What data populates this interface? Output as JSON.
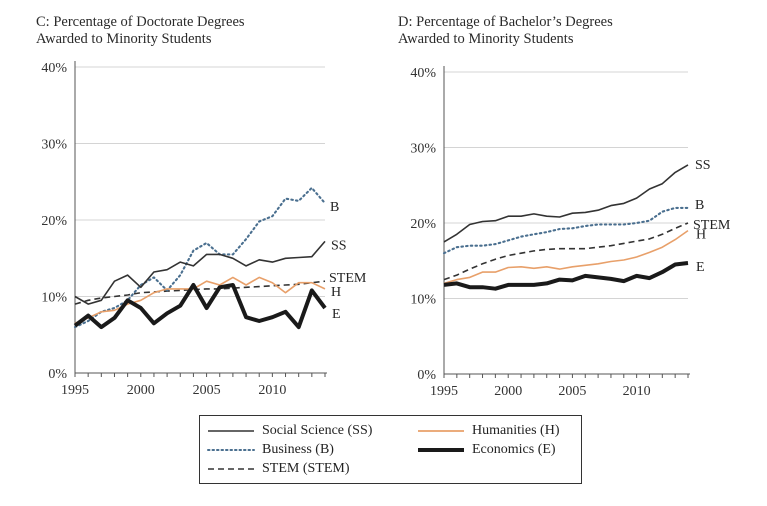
{
  "chart_data": [
    {
      "type": "line",
      "panel": "C",
      "title_lines": [
        "C: Percentage of Doctorate Degrees",
        "Awarded to Minority Students"
      ],
      "xlabel": "",
      "ylabel": "",
      "xlim": [
        1995,
        2014
      ],
      "ylim": [
        0,
        40
      ],
      "xticks": [
        1995,
        2000,
        2005,
        2010
      ],
      "yticks": [
        0,
        10,
        20,
        30,
        40
      ],
      "ytick_labels": [
        "0%",
        "10%",
        "20%",
        "30%",
        "40%"
      ],
      "grid": true,
      "x": [
        1995,
        1996,
        1997,
        1998,
        1999,
        2000,
        2001,
        2002,
        2003,
        2004,
        2005,
        2006,
        2007,
        2008,
        2009,
        2010,
        2011,
        2012,
        2013,
        2014
      ],
      "series": [
        {
          "name": "Social Science (SS)",
          "label": "SS",
          "color": "#333333",
          "style": "solid",
          "values": [
            10,
            9,
            9.5,
            12,
            12.8,
            11.2,
            13.2,
            13.5,
            14.5,
            14,
            15.5,
            15.5,
            15,
            14,
            14.8,
            14.5,
            15,
            15.1,
            15.2,
            17.2
          ]
        },
        {
          "name": "Business (B)",
          "label": "B",
          "color": "#4a6f8f",
          "style": "dotted",
          "values": [
            6,
            6.8,
            8,
            8.5,
            9.5,
            11.5,
            12.5,
            10.8,
            12.8,
            16,
            17,
            15.5,
            15.5,
            17.5,
            19.8,
            20.5,
            22.8,
            22.5,
            24.2,
            22.2
          ]
        },
        {
          "name": "STEM (STEM)",
          "label": "STEM",
          "color": "#333333",
          "style": "dashed",
          "values": [
            9,
            9.5,
            9.8,
            10,
            10.2,
            10.5,
            10.6,
            10.7,
            10.8,
            10.9,
            11,
            11,
            11.1,
            11.2,
            11.3,
            11.4,
            11.5,
            11.6,
            11.8,
            12
          ]
        },
        {
          "name": "Humanities (H)",
          "label": "H",
          "color": "#e8a06a",
          "style": "solid",
          "values": [
            6.5,
            7.2,
            8,
            8.2,
            9,
            9.5,
            10.5,
            11,
            11,
            11,
            12,
            11.5,
            12.5,
            11.5,
            12.5,
            11.8,
            10.5,
            11.8,
            11.8,
            11
          ]
        },
        {
          "name": "Economics (E)",
          "label": "E",
          "color": "#1a1a1a",
          "style": "thick",
          "values": [
            6.2,
            7.5,
            6,
            7.2,
            9.5,
            8.5,
            6.5,
            7.8,
            8.8,
            11.5,
            8.5,
            11.2,
            11.5,
            7.3,
            6.8,
            7.3,
            8,
            6,
            10.8,
            8.5
          ]
        }
      ]
    },
    {
      "type": "line",
      "panel": "D",
      "title_lines": [
        "D: Percentage of Bachelor’s Degrees",
        "Awarded to Minority Students"
      ],
      "xlabel": "",
      "ylabel": "",
      "xlim": [
        1995,
        2014
      ],
      "ylim": [
        0,
        40
      ],
      "xticks": [
        1995,
        2000,
        2005,
        2010
      ],
      "yticks": [
        0,
        10,
        20,
        30,
        40
      ],
      "ytick_labels": [
        "0%",
        "10%",
        "20%",
        "30%",
        "40%"
      ],
      "grid": true,
      "x": [
        1995,
        1996,
        1997,
        1998,
        1999,
        2000,
        2001,
        2002,
        2003,
        2004,
        2005,
        2006,
        2007,
        2008,
        2009,
        2010,
        2011,
        2012,
        2013,
        2014
      ],
      "series": [
        {
          "name": "Social Science (SS)",
          "label": "SS",
          "color": "#333333",
          "style": "solid",
          "values": [
            17.5,
            18.5,
            19.8,
            20.2,
            20.3,
            20.9,
            20.9,
            21.2,
            20.9,
            20.8,
            21.3,
            21.4,
            21.7,
            22.3,
            22.6,
            23.3,
            24.5,
            25.2,
            26.7,
            27.7
          ]
        },
        {
          "name": "Business (B)",
          "label": "B",
          "color": "#4a6f8f",
          "style": "dotted",
          "values": [
            16,
            16.8,
            17,
            17,
            17.2,
            17.7,
            18.2,
            18.5,
            18.8,
            19.2,
            19.3,
            19.6,
            19.8,
            19.8,
            19.8,
            20,
            20.3,
            21.5,
            22,
            22
          ]
        },
        {
          "name": "STEM (STEM)",
          "label": "STEM",
          "color": "#333333",
          "style": "dashed",
          "values": [
            12.5,
            13.1,
            13.9,
            14.6,
            15.2,
            15.7,
            16,
            16.3,
            16.5,
            16.6,
            16.6,
            16.6,
            16.8,
            17,
            17.3,
            17.6,
            17.9,
            18.5,
            19.3,
            20
          ]
        },
        {
          "name": "Humanities (H)",
          "label": "H",
          "color": "#e8a06a",
          "style": "solid",
          "values": [
            12,
            12.5,
            12.8,
            13.5,
            13.5,
            14.1,
            14.2,
            14,
            14.2,
            13.9,
            14.2,
            14.4,
            14.6,
            14.9,
            15.1,
            15.5,
            16.1,
            16.8,
            17.8,
            19
          ]
        },
        {
          "name": "Economics (E)",
          "label": "E",
          "color": "#1a1a1a",
          "style": "thick",
          "values": [
            11.8,
            12,
            11.5,
            11.5,
            11.3,
            11.8,
            11.8,
            11.8,
            12,
            12.5,
            12.4,
            13,
            12.8,
            12.6,
            12.3,
            13,
            12.7,
            13.5,
            14.5,
            14.7
          ]
        }
      ]
    }
  ],
  "legend": {
    "items": [
      {
        "text": "Social Science (SS)",
        "style": "solid",
        "color": "#333333"
      },
      {
        "text": "Humanities (H)",
        "style": "solid",
        "color": "#e8a06a"
      },
      {
        "text": "Business (B)",
        "style": "dotted",
        "color": "#4a6f8f"
      },
      {
        "text": "Economics (E)",
        "style": "thick",
        "color": "#1a1a1a"
      },
      {
        "text": "STEM (STEM)",
        "style": "dashed",
        "color": "#333333"
      }
    ]
  }
}
